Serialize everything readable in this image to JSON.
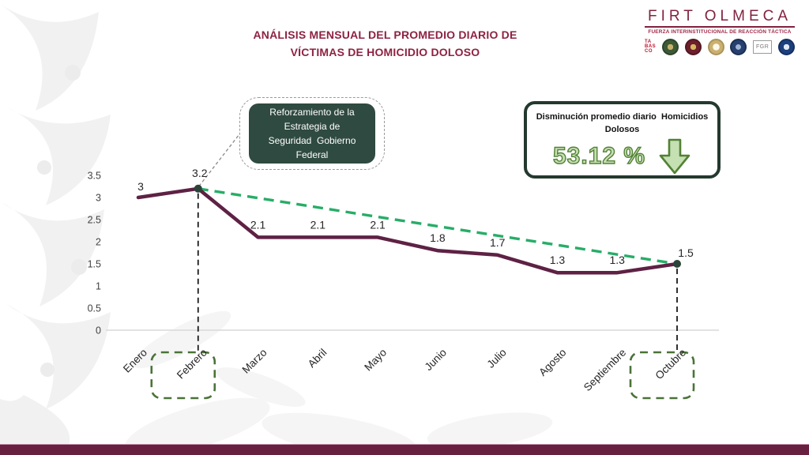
{
  "slide": {
    "title_line1": "ANÁLISIS MENSUAL DEL PROMEDIO DIARIO DE",
    "title_line2": "VÍCTIMAS DE HOMICIDIO DOLOSO"
  },
  "brand": {
    "name": "FIRT OLMECA",
    "subtitle": "FUERZA INTERINSTITUCIONAL DE REACCIÓN TÁCTICA",
    "tabasco": [
      "TA",
      "BAS",
      "CO"
    ],
    "fgr_label": "FGR"
  },
  "callout": {
    "lines": [
      "Reforzamiento de la",
      "Estrategia de",
      "Seguridad  Gobierno",
      "Federal"
    ]
  },
  "stat_box": {
    "line1": "Disminución promedio diario  Homicidios",
    "line2": "Dolosos",
    "value": "53.12 %"
  },
  "chart_data": {
    "type": "line",
    "title": "ANÁLISIS MENSUAL DEL PROMEDIO DIARIO DE VÍCTIMAS DE HOMICIDIO DOLOSO",
    "categories": [
      "Enero",
      "Febrero",
      "Marzo",
      "Abril",
      "Mayo",
      "Junio",
      "Julio",
      "Agosto",
      "Septiembre",
      "Octubre"
    ],
    "values": [
      3,
      3.2,
      2.1,
      2.1,
      2.1,
      1.8,
      1.7,
      1.3,
      1.3,
      1.5
    ],
    "point_labels": [
      "3",
      "3.2",
      "2.1",
      "2.1",
      "2.1",
      "1.8",
      "1.7",
      "1.3",
      "1.3",
      "1.5"
    ],
    "y_ticks": [
      "3.5",
      "3",
      "2.5",
      "2",
      "1.5",
      "1",
      "0.5",
      "0"
    ],
    "ylim": [
      0,
      3.5
    ],
    "xlabel": "",
    "ylabel": "",
    "grid": false,
    "legend": "none",
    "highlighted_months": [
      "Febrero",
      "Octubre"
    ],
    "markers_on": [
      "Febrero",
      "Octubre"
    ],
    "trend_line": {
      "from": "Febrero",
      "to": "Octubre",
      "style": "dashed"
    },
    "colors": {
      "series": "#5e2144",
      "trend": "#27ad68",
      "marker": "#2a443a",
      "highlight_box": "#4a7337",
      "guide_line": "#1a1a1a",
      "tick_text": "#404040",
      "label_text": "#262626",
      "axis_line": "#d9d9d9"
    }
  },
  "colors": {
    "title": "#8e2242",
    "brand": "#82223f",
    "footer_bar": "#67203f",
    "callout_bg": "#2f4a40",
    "stat_border": "#24392f",
    "stat_value_fill": "#c5e0b3",
    "stat_value_outline": "#538135"
  }
}
